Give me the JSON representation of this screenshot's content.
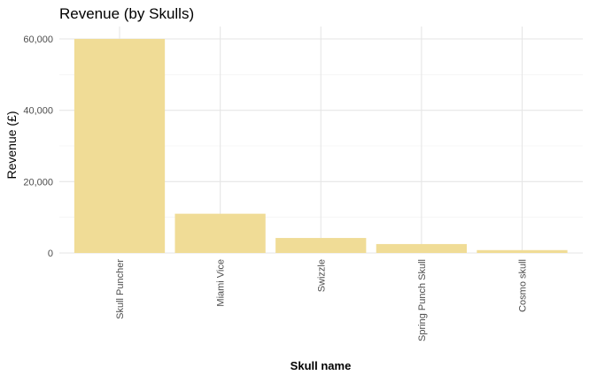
{
  "chart_data": {
    "type": "bar",
    "title": "Revenue (by Skulls)",
    "xlabel": "Skull name",
    "ylabel": "Revenue (£)",
    "categories": [
      "Skull Puncher",
      "Miami Vice",
      "Swizzle",
      "Spring Punch Skull",
      "Cosmo skull"
    ],
    "values": [
      60000,
      11000,
      4200,
      2500,
      800
    ],
    "ylim": [
      0,
      60000
    ],
    "yticks": [
      0,
      20000,
      40000,
      60000
    ],
    "ytick_labels": [
      "0",
      "20,000",
      "40,000",
      "60,000"
    ],
    "grid": true,
    "legend": "none",
    "bar_color": "#f0dc96"
  }
}
